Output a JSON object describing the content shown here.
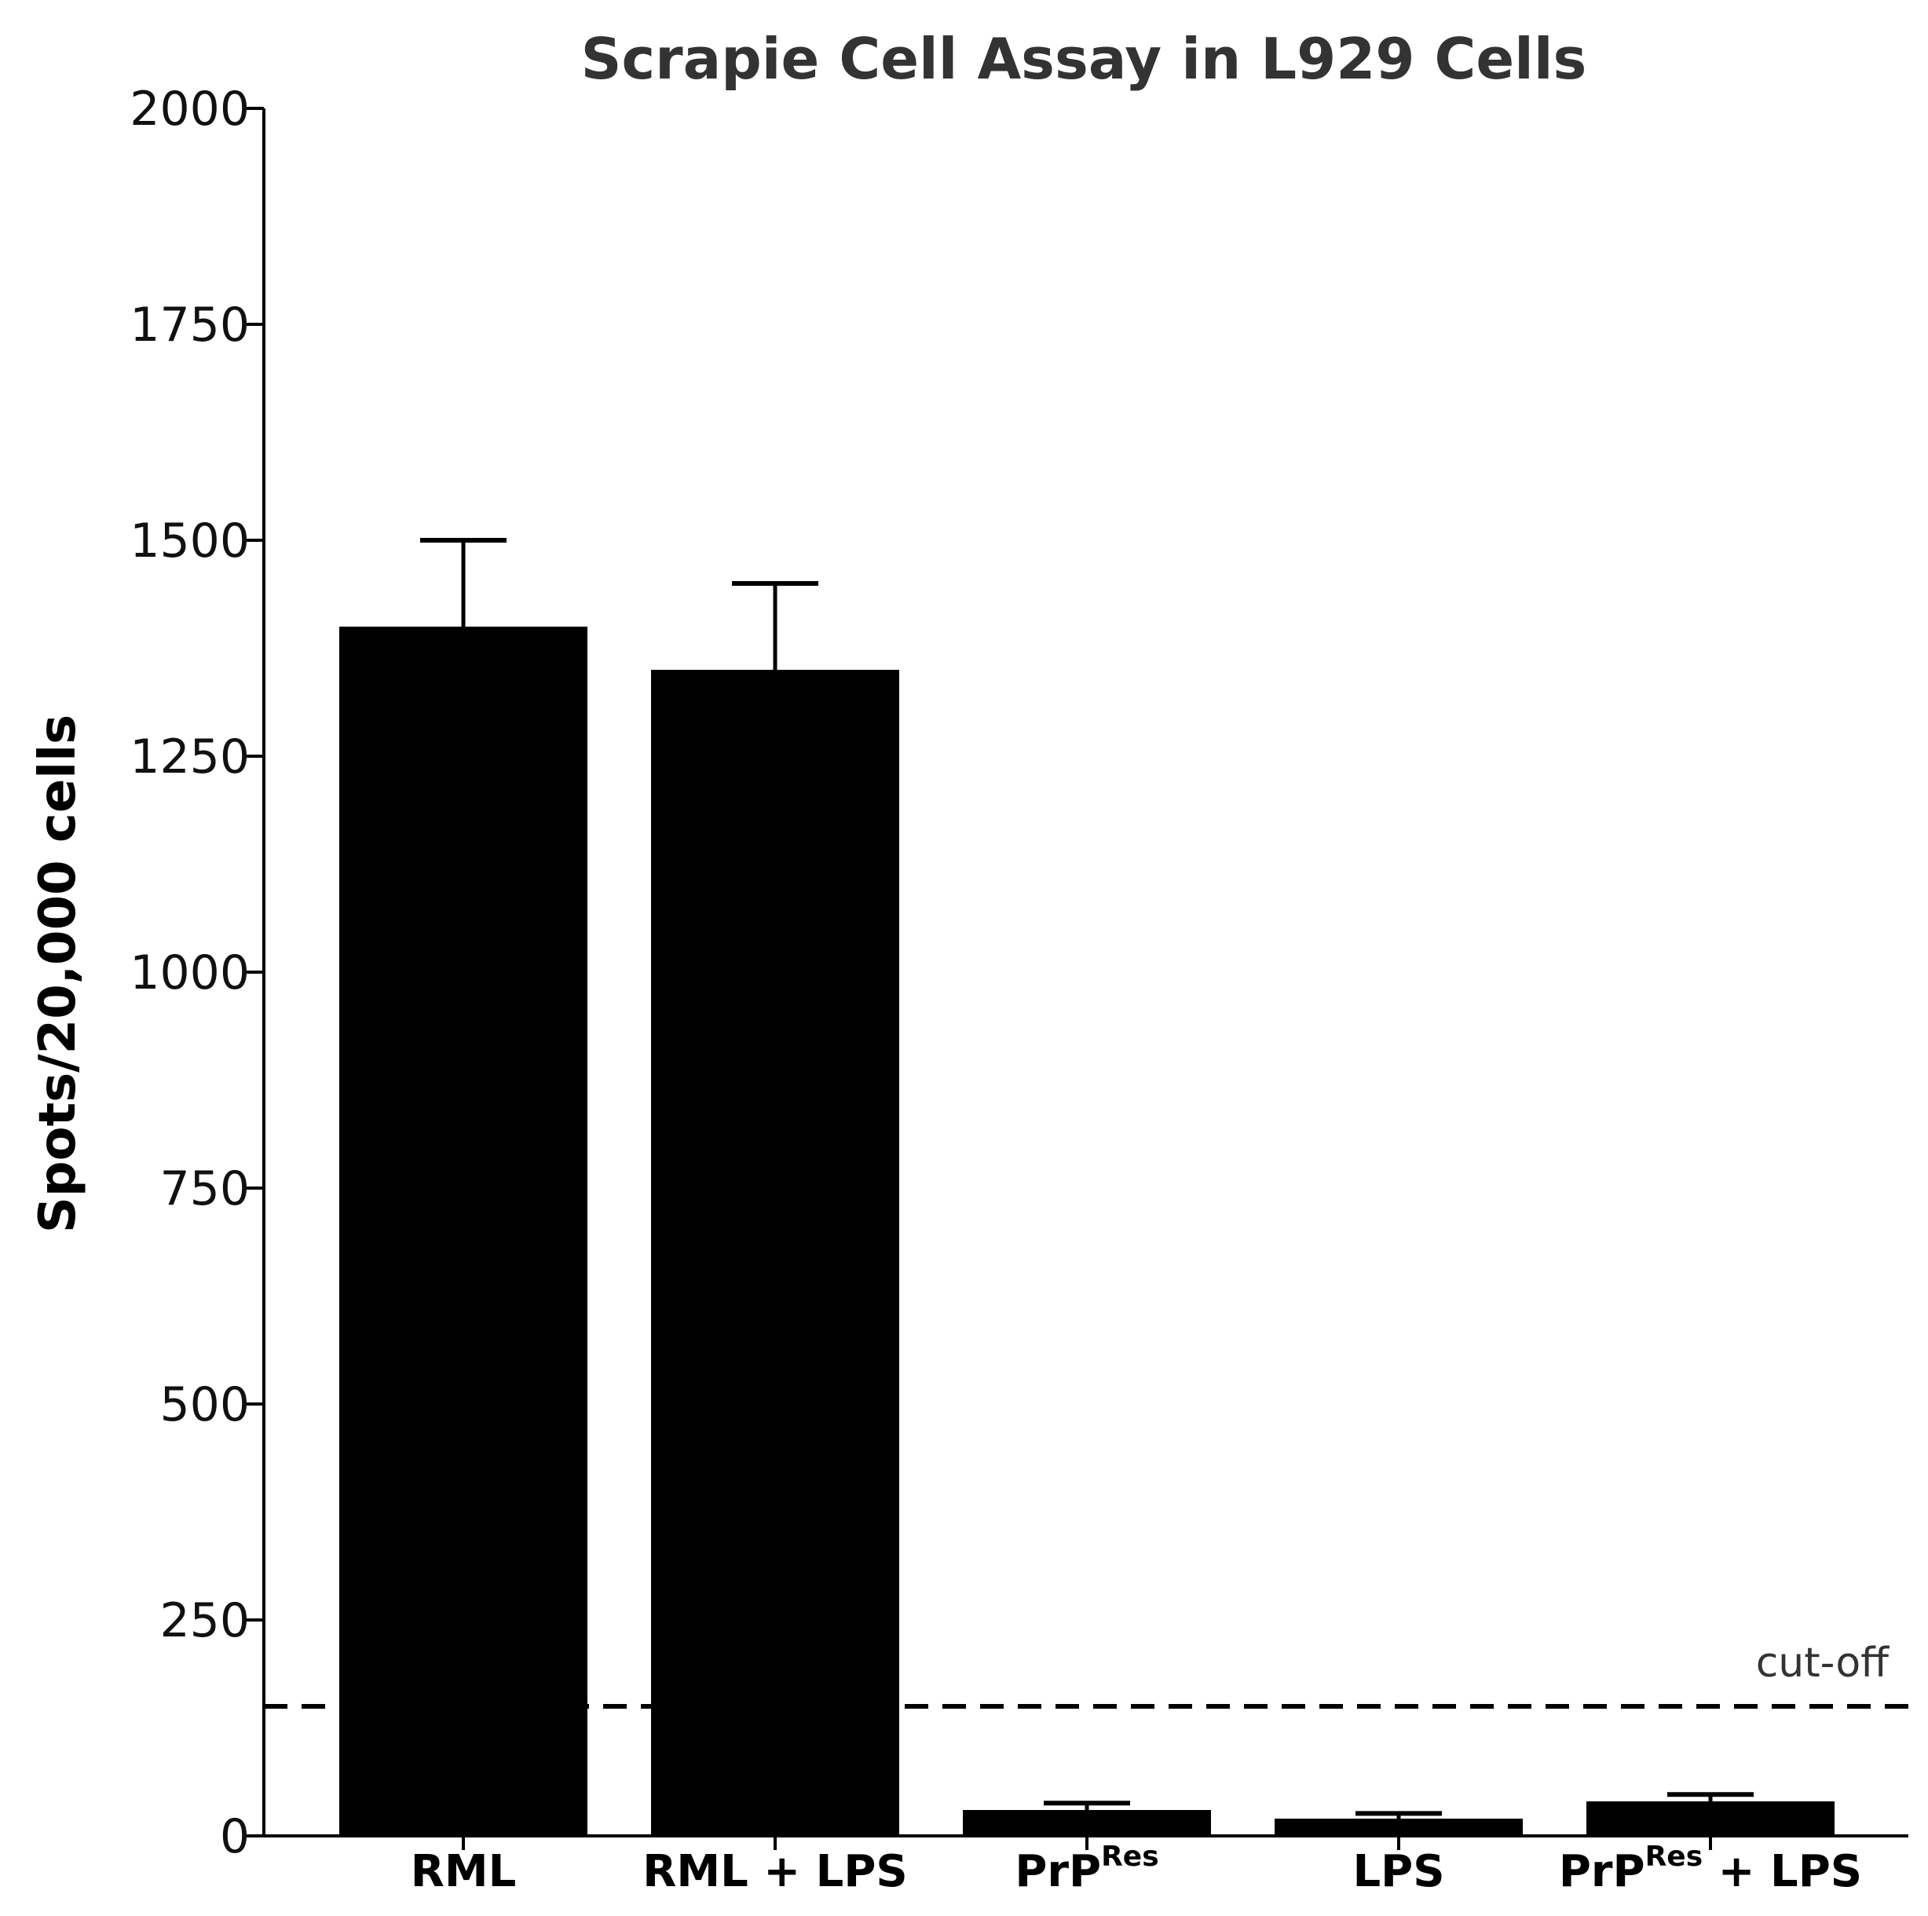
{
  "chart_data": {
    "type": "bar",
    "title": "Scrapie Cell Assay in L929 Cells",
    "ylabel": "Spots/20,000 cells",
    "xlabel": "",
    "ylim": [
      0,
      2000
    ],
    "yticks": [
      0,
      250,
      500,
      750,
      1000,
      1250,
      1500,
      1750,
      2000
    ],
    "categories": [
      {
        "base": "RML",
        "sup": "",
        "suffix": ""
      },
      {
        "base": "RML + LPS",
        "sup": "",
        "suffix": ""
      },
      {
        "base": "PrP",
        "sup": "Res",
        "suffix": ""
      },
      {
        "base": "LPS",
        "sup": "",
        "suffix": ""
      },
      {
        "base": "PrP",
        "sup": "Res",
        "suffix": " + LPS"
      }
    ],
    "values": [
      1400,
      1350,
      30,
      20,
      40
    ],
    "errors": [
      100,
      100,
      8,
      6,
      8
    ],
    "bar_color": "#000000",
    "cutoff": {
      "value": 150,
      "label": "cut-off",
      "style": "dashed"
    },
    "grid": false,
    "legend": "none"
  }
}
